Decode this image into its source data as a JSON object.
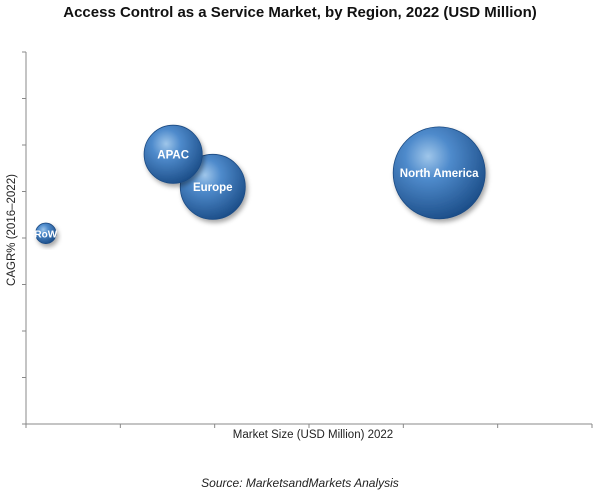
{
  "chart_data": {
    "type": "bubble",
    "title": "Access Control as a Service Market, by Region, 2022 (USD Million)",
    "xlabel": "Market Size (USD Million) 2022",
    "ylabel": "CAGR% (2016–2022)",
    "xlim": [
      0,
      10
    ],
    "ylim": [
      0,
      8
    ],
    "x_tick_count": 6,
    "y_tick_count": 8,
    "tick_labels_shown": false,
    "grid": false,
    "legend": "none",
    "points": [
      {
        "label": "North America",
        "x": 7.3,
        "y": 5.4,
        "size": 100
      },
      {
        "label": "APAC",
        "x": 2.6,
        "y": 5.8,
        "size": 40
      },
      {
        "label": "Europe",
        "x": 3.3,
        "y": 5.1,
        "size": 50
      },
      {
        "label": "RoW",
        "x": 0.35,
        "y": 4.1,
        "size": 5
      }
    ],
    "bubble_color": "#2f6fb0"
  },
  "source": "Source: MarketsandMarkets Analysis"
}
